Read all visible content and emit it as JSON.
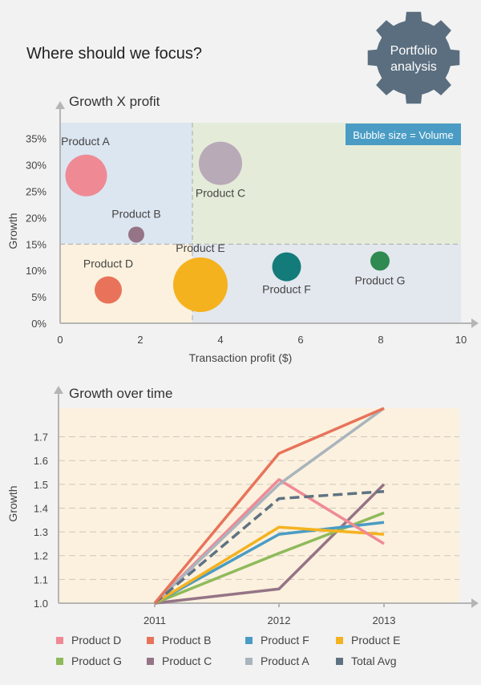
{
  "headline": "Where should we focus?",
  "badge": {
    "line1": "Portfolio",
    "line2": "analysis",
    "color": "#5a6e7f"
  },
  "colors": {
    "Product D": "#ef8a95",
    "Product B": "#e8735a",
    "Product F": "#4a9cc4",
    "Product E": "#f5b21f",
    "Product G": "#8fba5a",
    "Product C": "#957486",
    "Product A": "#a9b4bd",
    "Total Avg": "#5f7282"
  },
  "chart_data": [
    {
      "type": "scatter",
      "title": "Growth X profit",
      "xlabel": "Transaction profit ($)",
      "ylabel": "Growth",
      "xlim": [
        0,
        10
      ],
      "ylim": [
        0,
        0.38
      ],
      "xticks": [
        "0",
        "2",
        "4",
        "6",
        "8",
        "10"
      ],
      "yticks": [
        "0%",
        "5%",
        "10%",
        "15%",
        "20%",
        "25%",
        "30%",
        "35%"
      ],
      "quadrant_split": {
        "x": 3.3,
        "y": 0.15
      },
      "note": "Bubble size = Volume",
      "points": [
        {
          "label": "Product A",
          "x": 0.65,
          "y": 0.28,
          "volume": 26,
          "color": "#ef8a95"
        },
        {
          "label": "Product B",
          "x": 1.9,
          "y": 0.168,
          "volume": 10,
          "color": "#957486"
        },
        {
          "label": "Product C",
          "x": 4.0,
          "y": 0.303,
          "volume": 27,
          "color": "#b9aab8"
        },
        {
          "label": "Product D",
          "x": 1.2,
          "y": 0.063,
          "volume": 17,
          "color": "#e8735a"
        },
        {
          "label": "Product E",
          "x": 3.5,
          "y": 0.073,
          "volume": 34,
          "color": "#f5b21f"
        },
        {
          "label": "Product F",
          "x": 5.65,
          "y": 0.107,
          "volume": 18,
          "color": "#137b7a"
        },
        {
          "label": "Product G",
          "x": 7.98,
          "y": 0.118,
          "volume": 12,
          "color": "#2e8a50"
        }
      ]
    },
    {
      "type": "line",
      "title": "Growth over time",
      "ylabel": "Growth",
      "categories": [
        "2011",
        "2012",
        "2013"
      ],
      "ylim": [
        1.0,
        1.82
      ],
      "yticks": [
        "1.0",
        "1.1",
        "1.2",
        "1.3",
        "1.4",
        "1.5",
        "1.6",
        "1.7"
      ],
      "series": [
        {
          "name": "Product D",
          "values": [
            1.0,
            1.52,
            1.25
          ]
        },
        {
          "name": "Product B",
          "values": [
            1.0,
            1.63,
            1.82
          ]
        },
        {
          "name": "Product F",
          "values": [
            1.0,
            1.29,
            1.34
          ]
        },
        {
          "name": "Product E",
          "values": [
            1.0,
            1.32,
            1.29
          ]
        },
        {
          "name": "Product G",
          "values": [
            1.0,
            1.21,
            1.38
          ]
        },
        {
          "name": "Product C",
          "values": [
            1.0,
            1.06,
            1.5
          ]
        },
        {
          "name": "Product A",
          "values": [
            1.0,
            1.5,
            1.82
          ]
        },
        {
          "name": "Total Avg",
          "values": [
            1.0,
            1.44,
            1.47
          ],
          "dashed": true
        }
      ]
    }
  ]
}
